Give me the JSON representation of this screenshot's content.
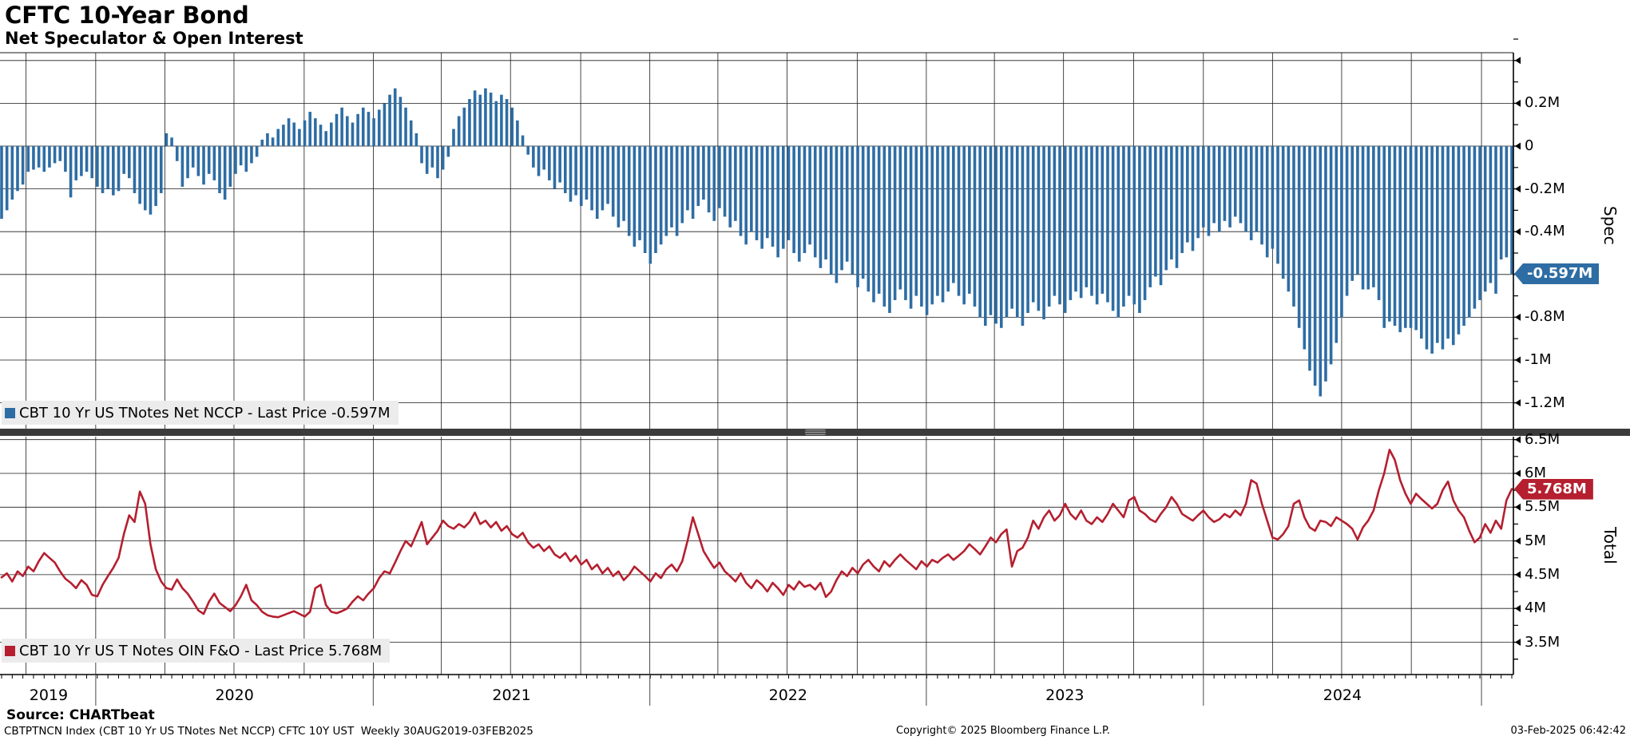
{
  "header": {
    "title": "CFTC 10-Year Bond",
    "subtitle": "Net Speculator & Open Interest"
  },
  "legends": {
    "spec": "CBT 10 Yr US TNotes Net NCCP - Last Price -0.597M",
    "total": "CBT 10 Yr US T Notes OIN F&O - Last Price 5.768M"
  },
  "badges": {
    "spec": {
      "label": "-0.597M",
      "value": -0.597,
      "color": "#2e6da4"
    },
    "total": {
      "label": "5.768M",
      "value": 5.768,
      "color": "#b51f2f"
    }
  },
  "axes": {
    "spec_name": "Spec",
    "total_name": "Total",
    "spec_ticks": [
      {
        "v": 0.4,
        "label": ""
      },
      {
        "v": 0.2,
        "label": "0.2M"
      },
      {
        "v": 0.0,
        "label": "0"
      },
      {
        "v": -0.2,
        "label": "-0.2M"
      },
      {
        "v": -0.4,
        "label": "-0.4M"
      },
      {
        "v": -0.6,
        "label": ""
      },
      {
        "v": -0.8,
        "label": "-0.8M"
      },
      {
        "v": -1.0,
        "label": "-1M"
      },
      {
        "v": -1.2,
        "label": "-1.2M"
      }
    ],
    "total_ticks": [
      {
        "v": 6.5,
        "label": "6.5M"
      },
      {
        "v": 6.0,
        "label": "6M"
      },
      {
        "v": 5.5,
        "label": "5.5M"
      },
      {
        "v": 5.0,
        "label": "5M"
      },
      {
        "v": 4.5,
        "label": "4.5M"
      },
      {
        "v": 4.0,
        "label": "4M"
      },
      {
        "v": 3.5,
        "label": "3.5M"
      }
    ],
    "years": [
      "2019",
      "2020",
      "2021",
      "2022",
      "2023",
      "2024"
    ]
  },
  "footer": {
    "source": "Source: CHARTbeat",
    "info": "CBTPTNCN Index (CBT 10 Yr US TNotes Net NCCP) CFTC 10Y UST  Weekly 30AUG2019-03FEB2025",
    "copyright": "Copyright© 2025 Bloomberg Finance L.P.",
    "timestamp": "03-Feb-2025 06:42:42"
  },
  "colors": {
    "bar_blue": "#2e6da4",
    "line_red": "#b51f2f",
    "separator": "#3b3b3b",
    "legend_bg": "#ececec",
    "grid": "#1a1a1a"
  },
  "chart_data": [
    {
      "type": "bar",
      "name": "CBT 10 Yr US TNotes Net NCCP",
      "panel": "Spec",
      "unit": "M contracts",
      "frequency": "weekly",
      "range_text": "30AUG2019-03FEB2025",
      "last_price": -0.597,
      "ylim": [
        -1.3,
        0.45
      ],
      "gridlines": "0.2M steps, quarterly vertical",
      "values": [
        -0.34,
        -0.3,
        -0.25,
        -0.21,
        -0.18,
        -0.12,
        -0.11,
        -0.1,
        -0.12,
        -0.1,
        -0.08,
        -0.07,
        -0.12,
        -0.24,
        -0.16,
        -0.14,
        -0.12,
        -0.15,
        -0.19,
        -0.22,
        -0.2,
        -0.23,
        -0.21,
        -0.13,
        -0.15,
        -0.22,
        -0.27,
        -0.3,
        -0.32,
        -0.28,
        -0.22,
        0.06,
        0.04,
        -0.07,
        -0.19,
        -0.15,
        -0.1,
        -0.14,
        -0.18,
        -0.13,
        -0.16,
        -0.22,
        -0.25,
        -0.19,
        -0.13,
        -0.09,
        -0.12,
        -0.08,
        -0.05,
        0.03,
        0.06,
        0.04,
        0.08,
        0.1,
        0.13,
        0.11,
        0.08,
        0.12,
        0.16,
        0.13,
        0.1,
        0.07,
        0.11,
        0.15,
        0.18,
        0.14,
        0.11,
        0.15,
        0.18,
        0.16,
        0.13,
        0.17,
        0.2,
        0.24,
        0.27,
        0.23,
        0.18,
        0.12,
        0.06,
        -0.08,
        -0.13,
        -0.1,
        -0.15,
        -0.11,
        -0.05,
        0.08,
        0.14,
        0.18,
        0.22,
        0.26,
        0.24,
        0.27,
        0.25,
        0.21,
        0.24,
        0.22,
        0.18,
        0.12,
        0.05,
        -0.04,
        -0.1,
        -0.14,
        -0.11,
        -0.16,
        -0.2,
        -0.17,
        -0.22,
        -0.26,
        -0.23,
        -0.28,
        -0.25,
        -0.3,
        -0.34,
        -0.3,
        -0.27,
        -0.33,
        -0.38,
        -0.35,
        -0.42,
        -0.47,
        -0.44,
        -0.5,
        -0.55,
        -0.5,
        -0.46,
        -0.42,
        -0.38,
        -0.42,
        -0.36,
        -0.3,
        -0.34,
        -0.28,
        -0.25,
        -0.31,
        -0.35,
        -0.29,
        -0.33,
        -0.38,
        -0.35,
        -0.42,
        -0.46,
        -0.4,
        -0.44,
        -0.48,
        -0.43,
        -0.47,
        -0.52,
        -0.48,
        -0.44,
        -0.5,
        -0.54,
        -0.5,
        -0.46,
        -0.52,
        -0.57,
        -0.53,
        -0.6,
        -0.64,
        -0.58,
        -0.54,
        -0.6,
        -0.66,
        -0.62,
        -0.68,
        -0.73,
        -0.69,
        -0.75,
        -0.78,
        -0.72,
        -0.67,
        -0.72,
        -0.76,
        -0.7,
        -0.75,
        -0.79,
        -0.74,
        -0.7,
        -0.73,
        -0.68,
        -0.64,
        -0.7,
        -0.74,
        -0.69,
        -0.75,
        -0.8,
        -0.84,
        -0.79,
        -0.83,
        -0.85,
        -0.8,
        -0.76,
        -0.8,
        -0.84,
        -0.78,
        -0.73,
        -0.77,
        -0.81,
        -0.75,
        -0.7,
        -0.74,
        -0.78,
        -0.72,
        -0.68,
        -0.71,
        -0.66,
        -0.7,
        -0.74,
        -0.69,
        -0.73,
        -0.77,
        -0.8,
        -0.75,
        -0.7,
        -0.74,
        -0.78,
        -0.72,
        -0.66,
        -0.61,
        -0.65,
        -0.58,
        -0.53,
        -0.57,
        -0.5,
        -0.45,
        -0.49,
        -0.43,
        -0.38,
        -0.42,
        -0.36,
        -0.4,
        -0.35,
        -0.38,
        -0.33,
        -0.36,
        -0.4,
        -0.44,
        -0.4,
        -0.46,
        -0.52,
        -0.48,
        -0.55,
        -0.62,
        -0.68,
        -0.75,
        -0.85,
        -0.95,
        -1.05,
        -1.12,
        -1.17,
        -1.1,
        -1.02,
        -0.92,
        -0.8,
        -0.7,
        -0.63,
        -0.6,
        -0.67,
        -0.67,
        -0.66,
        -0.72,
        -0.85,
        -0.82,
        -0.84,
        -0.87,
        -0.85,
        -0.85,
        -0.86,
        -0.9,
        -0.95,
        -0.97,
        -0.92,
        -0.95,
        -0.9,
        -0.93,
        -0.88,
        -0.84,
        -0.8,
        -0.76,
        -0.72,
        -0.68,
        -0.64,
        -0.69,
        -0.53,
        -0.52,
        -0.597
      ]
    },
    {
      "type": "line",
      "name": "CBT 10 Yr US T Notes OIN F&O",
      "panel": "Total",
      "unit": "M contracts",
      "frequency": "weekly",
      "range_text": "30AUG2019-03FEB2025",
      "last_price": 5.768,
      "ylim": [
        3.1,
        6.6
      ],
      "values": [
        4.46,
        4.52,
        4.4,
        4.55,
        4.48,
        4.62,
        4.55,
        4.7,
        4.82,
        4.75,
        4.68,
        4.55,
        4.44,
        4.38,
        4.3,
        4.42,
        4.35,
        4.2,
        4.18,
        4.35,
        4.48,
        4.6,
        4.75,
        5.1,
        5.38,
        5.28,
        5.73,
        5.55,
        4.95,
        4.58,
        4.4,
        4.3,
        4.28,
        4.43,
        4.3,
        4.22,
        4.1,
        3.97,
        3.92,
        4.1,
        4.22,
        4.08,
        4.02,
        3.96,
        4.05,
        4.18,
        4.35,
        4.12,
        4.05,
        3.95,
        3.9,
        3.88,
        3.87,
        3.9,
        3.93,
        3.96,
        3.92,
        3.88,
        3.95,
        4.3,
        4.35,
        4.05,
        3.95,
        3.93,
        3.96,
        4.0,
        4.1,
        4.18,
        4.12,
        4.22,
        4.3,
        4.45,
        4.55,
        4.52,
        4.68,
        4.85,
        5.0,
        4.92,
        5.1,
        5.28,
        4.95,
        5.05,
        5.15,
        5.3,
        5.22,
        5.18,
        5.25,
        5.2,
        5.28,
        5.42,
        5.25,
        5.3,
        5.2,
        5.28,
        5.15,
        5.22,
        5.1,
        5.05,
        5.12,
        4.98,
        4.9,
        4.95,
        4.85,
        4.92,
        4.8,
        4.75,
        4.82,
        4.7,
        4.78,
        4.65,
        4.72,
        4.58,
        4.65,
        4.52,
        4.6,
        4.48,
        4.55,
        4.42,
        4.5,
        4.62,
        4.55,
        4.48,
        4.4,
        4.52,
        4.45,
        4.58,
        4.65,
        4.55,
        4.7,
        5.0,
        5.35,
        5.1,
        4.85,
        4.72,
        4.6,
        4.68,
        4.55,
        4.48,
        4.4,
        4.52,
        4.38,
        4.3,
        4.42,
        4.35,
        4.25,
        4.38,
        4.3,
        4.2,
        4.35,
        4.28,
        4.4,
        4.32,
        4.35,
        4.28,
        4.38,
        4.17,
        4.25,
        4.42,
        4.55,
        4.48,
        4.6,
        4.52,
        4.65,
        4.72,
        4.62,
        4.55,
        4.7,
        4.62,
        4.72,
        4.8,
        4.72,
        4.65,
        4.58,
        4.7,
        4.62,
        4.72,
        4.68,
        4.75,
        4.8,
        4.72,
        4.78,
        4.85,
        4.95,
        4.88,
        4.8,
        4.92,
        5.05,
        4.98,
        5.1,
        5.17,
        4.62,
        4.85,
        4.9,
        5.05,
        5.3,
        5.18,
        5.35,
        5.45,
        5.3,
        5.38,
        5.55,
        5.4,
        5.32,
        5.45,
        5.3,
        5.25,
        5.35,
        5.28,
        5.4,
        5.55,
        5.45,
        5.35,
        5.6,
        5.65,
        5.45,
        5.4,
        5.32,
        5.28,
        5.4,
        5.5,
        5.65,
        5.55,
        5.4,
        5.35,
        5.3,
        5.38,
        5.45,
        5.35,
        5.28,
        5.32,
        5.4,
        5.35,
        5.45,
        5.38,
        5.55,
        5.9,
        5.85,
        5.55,
        5.3,
        5.05,
        5.02,
        5.1,
        5.22,
        5.55,
        5.6,
        5.35,
        5.2,
        5.15,
        5.3,
        5.28,
        5.22,
        5.35,
        5.3,
        5.25,
        5.18,
        5.02,
        5.2,
        5.3,
        5.45,
        5.75,
        6.0,
        6.35,
        6.2,
        5.9,
        5.7,
        5.55,
        5.7,
        5.62,
        5.55,
        5.48,
        5.55,
        5.75,
        5.88,
        5.6,
        5.45,
        5.35,
        5.15,
        4.98,
        5.05,
        5.25,
        5.12,
        5.3,
        5.18,
        5.6,
        5.768
      ]
    }
  ]
}
